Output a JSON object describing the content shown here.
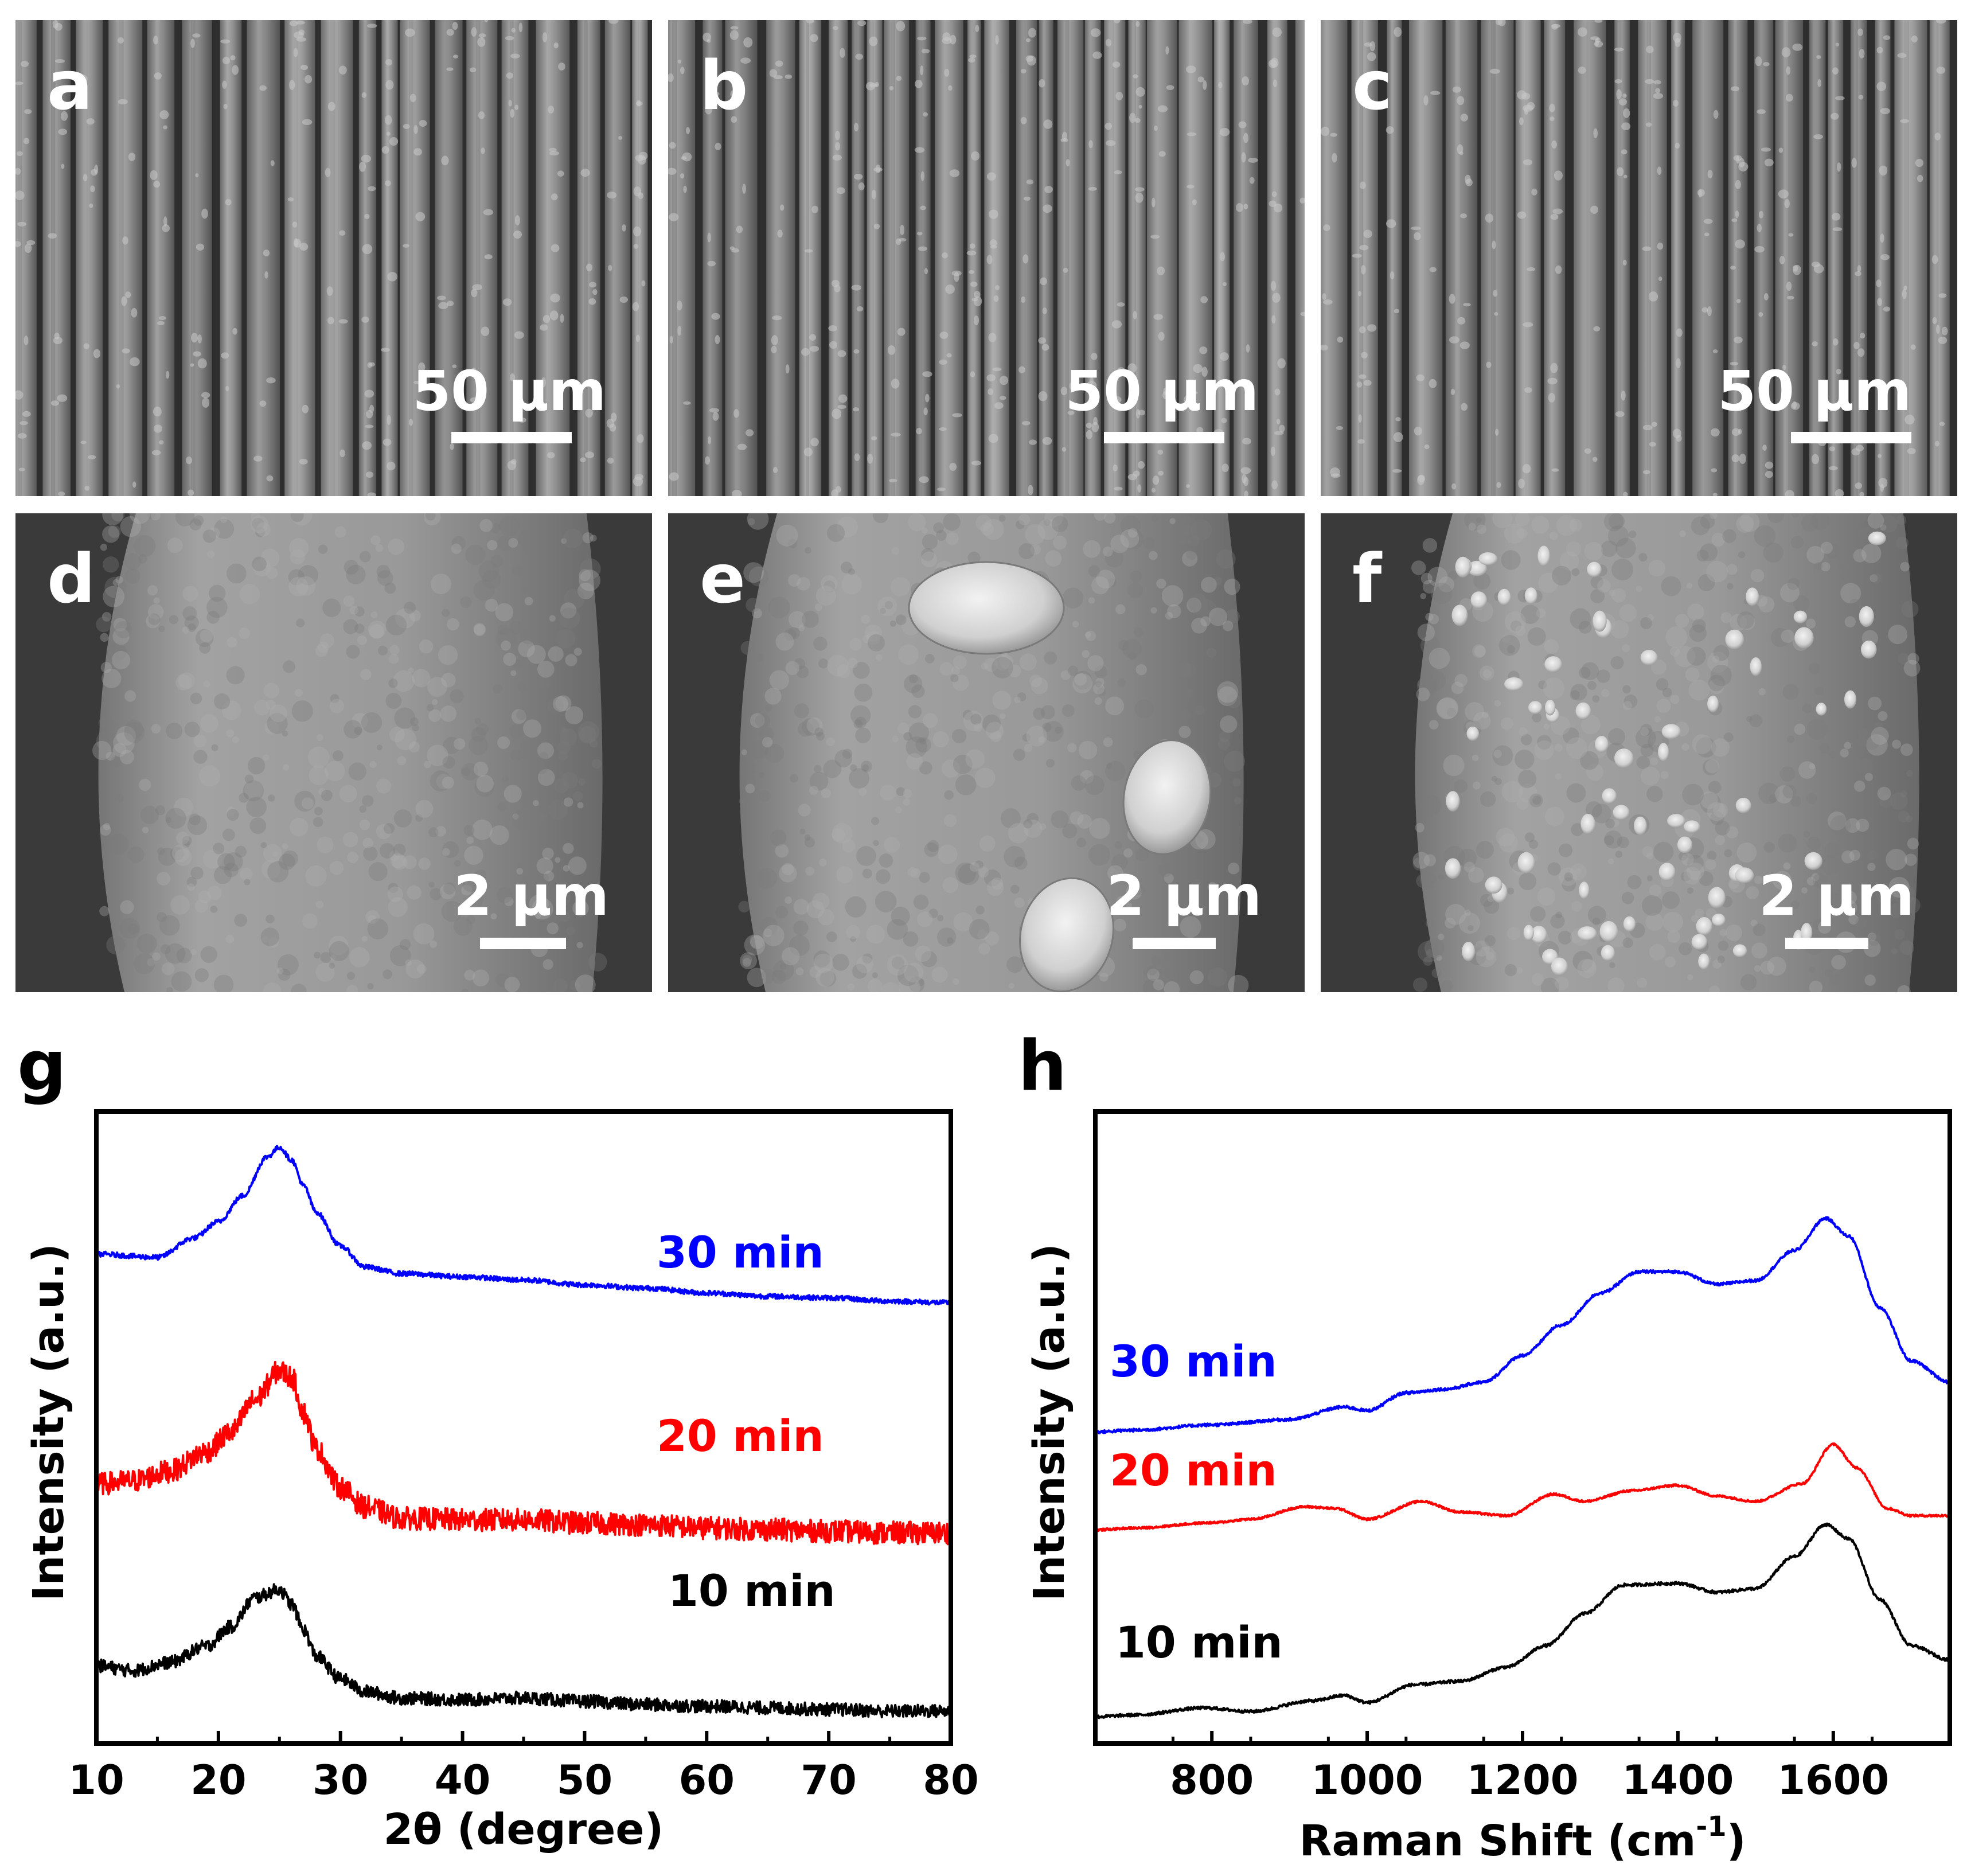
{
  "sem_panels": [
    {
      "letter": "a",
      "scale_label": "50 μm",
      "texture": "fibers"
    },
    {
      "letter": "b",
      "scale_label": "50 μm",
      "texture": "fibers"
    },
    {
      "letter": "c",
      "scale_label": "50 μm",
      "texture": "fibers"
    },
    {
      "letter": "d",
      "scale_label": "2 μm",
      "texture": "single-fiber"
    },
    {
      "letter": "e",
      "scale_label": "2 μm",
      "texture": "single-fiber-particles"
    },
    {
      "letter": "f",
      "scale_label": "2 μm",
      "texture": "single-fiber-bumps"
    }
  ],
  "chart_data": [
    {
      "letter": "g",
      "type": "line",
      "xlabel": "2θ (degree)",
      "ylabel": "Intensity (a.u.)",
      "xlim": [
        10,
        80
      ],
      "xticks": [
        10,
        20,
        30,
        40,
        50,
        60,
        70,
        80
      ],
      "yticks": [],
      "grid": false,
      "series": [
        {
          "name": "30 min",
          "color": "#0000ff",
          "offset": 2.3,
          "noise": 0.015,
          "points": [
            [
              10,
              0.52
            ],
            [
              15,
              0.5
            ],
            [
              18,
              0.62
            ],
            [
              20,
              0.72
            ],
            [
              22,
              0.88
            ],
            [
              24,
              1.12
            ],
            [
              25,
              1.18
            ],
            [
              26,
              1.1
            ],
            [
              27,
              0.94
            ],
            [
              28,
              0.78
            ],
            [
              30,
              0.57
            ],
            [
              32,
              0.44
            ],
            [
              35,
              0.4
            ],
            [
              40,
              0.38
            ],
            [
              45,
              0.36
            ],
            [
              50,
              0.33
            ],
            [
              55,
              0.31
            ],
            [
              60,
              0.28
            ],
            [
              65,
              0.26
            ],
            [
              70,
              0.25
            ],
            [
              75,
              0.23
            ],
            [
              80,
              0.22
            ]
          ]
        },
        {
          "name": "20 min",
          "color": "#ff0000",
          "offset": 1.1,
          "noise": 0.07,
          "points": [
            [
              10,
              0.3
            ],
            [
              13,
              0.32
            ],
            [
              16,
              0.38
            ],
            [
              19,
              0.5
            ],
            [
              21,
              0.62
            ],
            [
              23,
              0.82
            ],
            [
              25,
              1.0
            ],
            [
              26,
              0.96
            ],
            [
              27,
              0.74
            ],
            [
              28,
              0.52
            ],
            [
              30,
              0.28
            ],
            [
              32,
              0.16
            ],
            [
              35,
              0.09
            ],
            [
              40,
              0.08
            ],
            [
              45,
              0.08
            ],
            [
              50,
              0.06
            ],
            [
              55,
              0.05
            ],
            [
              60,
              0.03
            ],
            [
              65,
              0.02
            ],
            [
              70,
              0.01
            ],
            [
              75,
              0.0
            ],
            [
              80,
              0.0
            ]
          ]
        },
        {
          "name": "10 min",
          "color": "#000000",
          "offset": 0.0,
          "noise": 0.04,
          "points": [
            [
              10,
              0.28
            ],
            [
              13,
              0.25
            ],
            [
              16,
              0.3
            ],
            [
              19,
              0.4
            ],
            [
              21,
              0.52
            ],
            [
              23,
              0.7
            ],
            [
              25,
              0.75
            ],
            [
              26,
              0.66
            ],
            [
              27,
              0.5
            ],
            [
              28,
              0.34
            ],
            [
              30,
              0.2
            ],
            [
              32,
              0.12
            ],
            [
              35,
              0.08
            ],
            [
              40,
              0.07
            ],
            [
              45,
              0.08
            ],
            [
              50,
              0.06
            ],
            [
              55,
              0.04
            ],
            [
              60,
              0.03
            ],
            [
              65,
              0.02
            ],
            [
              70,
              0.01
            ],
            [
              75,
              0.0
            ],
            [
              80,
              0.0
            ]
          ]
        }
      ],
      "ylim": [
        -0.2,
        3.7
      ]
    },
    {
      "letter": "h",
      "type": "line",
      "xlabel": "Raman Shift (cm",
      "xlabel_sup": "-1",
      "xlabel_end": ")",
      "ylabel": "Intensity (a.u.)",
      "xlim": [
        650,
        1750
      ],
      "xticks": [
        800,
        1000,
        1200,
        1400,
        1600
      ],
      "yticks": [],
      "grid": false,
      "series": [
        {
          "name": "30 min",
          "color": "#0000ff",
          "offset": 1.6,
          "noise": 0.008,
          "points": [
            [
              650,
              0.0
            ],
            [
              700,
              0.01
            ],
            [
              800,
              0.04
            ],
            [
              900,
              0.07
            ],
            [
              970,
              0.14
            ],
            [
              1000,
              0.12
            ],
            [
              1050,
              0.22
            ],
            [
              1100,
              0.24
            ],
            [
              1150,
              0.28
            ],
            [
              1200,
              0.43
            ],
            [
              1250,
              0.6
            ],
            [
              1300,
              0.78
            ],
            [
              1350,
              0.9
            ],
            [
              1400,
              0.9
            ],
            [
              1450,
              0.83
            ],
            [
              1500,
              0.85
            ],
            [
              1550,
              1.02
            ],
            [
              1590,
              1.2
            ],
            [
              1620,
              1.1
            ],
            [
              1660,
              0.7
            ],
            [
              1700,
              0.4
            ],
            [
              1750,
              0.28
            ]
          ]
        },
        {
          "name": "20 min",
          "color": "#ff0000",
          "offset": 1.05,
          "noise": 0.006,
          "points": [
            [
              650,
              0.0
            ],
            [
              700,
              0.01
            ],
            [
              800,
              0.04
            ],
            [
              850,
              0.06
            ],
            [
              920,
              0.13
            ],
            [
              960,
              0.12
            ],
            [
              1000,
              0.06
            ],
            [
              1070,
              0.16
            ],
            [
              1120,
              0.1
            ],
            [
              1180,
              0.08
            ],
            [
              1240,
              0.2
            ],
            [
              1280,
              0.16
            ],
            [
              1340,
              0.22
            ],
            [
              1400,
              0.25
            ],
            [
              1450,
              0.19
            ],
            [
              1500,
              0.16
            ],
            [
              1560,
              0.26
            ],
            [
              1600,
              0.48
            ],
            [
              1630,
              0.35
            ],
            [
              1670,
              0.12
            ],
            [
              1700,
              0.08
            ],
            [
              1750,
              0.08
            ]
          ]
        },
        {
          "name": "10 min",
          "color": "#000000",
          "offset": 0.0,
          "noise": 0.008,
          "points": [
            [
              650,
              0.0
            ],
            [
              700,
              0.01
            ],
            [
              790,
              0.05
            ],
            [
              850,
              0.03
            ],
            [
              930,
              0.09
            ],
            [
              970,
              0.12
            ],
            [
              1000,
              0.08
            ],
            [
              1060,
              0.18
            ],
            [
              1120,
              0.2
            ],
            [
              1180,
              0.28
            ],
            [
              1230,
              0.4
            ],
            [
              1280,
              0.58
            ],
            [
              1330,
              0.74
            ],
            [
              1400,
              0.75
            ],
            [
              1450,
              0.7
            ],
            [
              1500,
              0.72
            ],
            [
              1550,
              0.9
            ],
            [
              1590,
              1.08
            ],
            [
              1620,
              1.0
            ],
            [
              1660,
              0.66
            ],
            [
              1700,
              0.4
            ],
            [
              1750,
              0.32
            ]
          ]
        }
      ],
      "ylim": [
        -0.15,
        3.4
      ]
    }
  ]
}
